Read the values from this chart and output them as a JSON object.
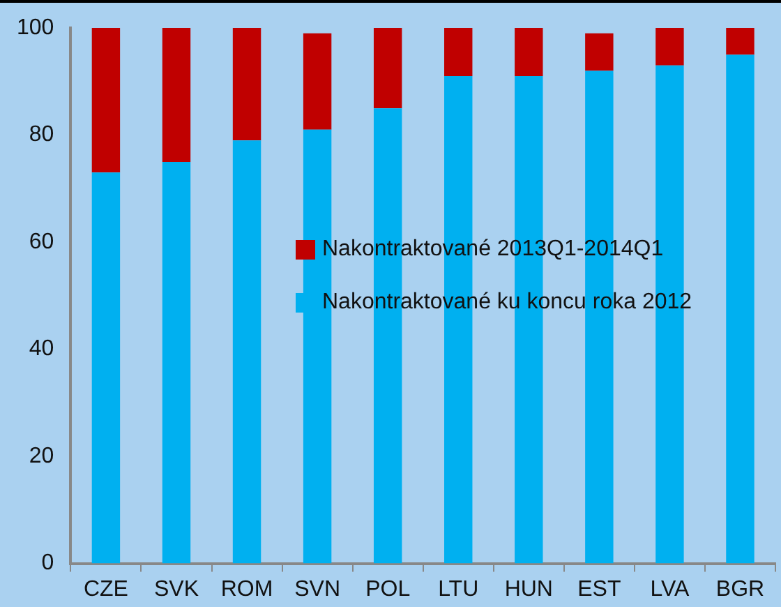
{
  "chart_data": {
    "type": "bar",
    "stacked": true,
    "categories": [
      "CZE",
      "SVK",
      "ROM",
      "SVN",
      "POL",
      "LTU",
      "HUN",
      "EST",
      "LVA",
      "BGR"
    ],
    "series": [
      {
        "name": "Nakontraktované ku koncu roka 2012",
        "color": "#00b0f0",
        "values": [
          73,
          75,
          79,
          81,
          85,
          91,
          91,
          92,
          93,
          95
        ]
      },
      {
        "name": "Nakontraktované 2013Q1-2014Q1",
        "color": "#c00000",
        "values": [
          27,
          25,
          21,
          18,
          15,
          9,
          9,
          7,
          7,
          5
        ]
      }
    ],
    "ylim": [
      0,
      100
    ],
    "yticks": [
      0,
      20,
      40,
      60,
      80,
      100
    ],
    "grid": false,
    "legend": "right"
  }
}
